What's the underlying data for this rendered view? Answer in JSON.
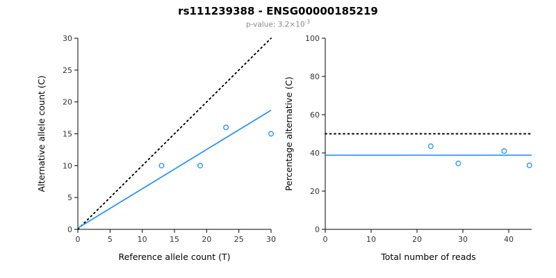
{
  "title": "rs111239388 - ENSG00000185219",
  "subtitle": {
    "text": "p-value: 3.2×10",
    "superscript": "-3"
  },
  "chart_data": [
    {
      "type": "scatter",
      "title": "",
      "xlabel": "Reference allele count (T)",
      "ylabel": "Alternative allele count (C)",
      "xlim": [
        0,
        30
      ],
      "ylim": [
        0,
        30
      ],
      "xticks": [
        0,
        5,
        10,
        15,
        20,
        25,
        30
      ],
      "yticks": [
        0,
        5,
        10,
        15,
        20,
        25,
        30
      ],
      "grid": false,
      "legend": "none",
      "point_color": "#1E90FF",
      "points": [
        [
          13,
          10
        ],
        [
          19,
          10
        ],
        [
          23,
          16
        ],
        [
          30,
          15
        ]
      ],
      "lines": [
        {
          "name": "identity",
          "style": "dotted",
          "color": "#000000",
          "x": [
            0,
            30
          ],
          "y": [
            0,
            30
          ]
        },
        {
          "name": "regression",
          "style": "solid",
          "color": "#1E90FF",
          "x": [
            0,
            30
          ],
          "y": [
            0.2,
            18.7
          ]
        }
      ]
    },
    {
      "type": "scatter",
      "title": "",
      "xlabel": "Total number of reads",
      "ylabel": "Percentage alternative (C)",
      "xlim": [
        0,
        45
      ],
      "ylim": [
        0,
        100
      ],
      "xticks": [
        0,
        10,
        20,
        30,
        40
      ],
      "yticks": [
        0,
        20,
        40,
        60,
        80,
        100
      ],
      "grid": false,
      "legend": "none",
      "point_color": "#1E90FF",
      "points": [
        [
          23,
          43.5
        ],
        [
          29,
          34.5
        ],
        [
          39,
          41
        ],
        [
          44.5,
          33.5
        ]
      ],
      "lines": [
        {
          "name": "expected-50pct",
          "style": "dotted",
          "color": "#000000",
          "x": [
            0,
            45
          ],
          "y": [
            50,
            50
          ]
        },
        {
          "name": "mean-percentage",
          "style": "solid",
          "color": "#1E90FF",
          "x": [
            0,
            45
          ],
          "y": [
            38.8,
            38.8
          ]
        }
      ]
    }
  ]
}
